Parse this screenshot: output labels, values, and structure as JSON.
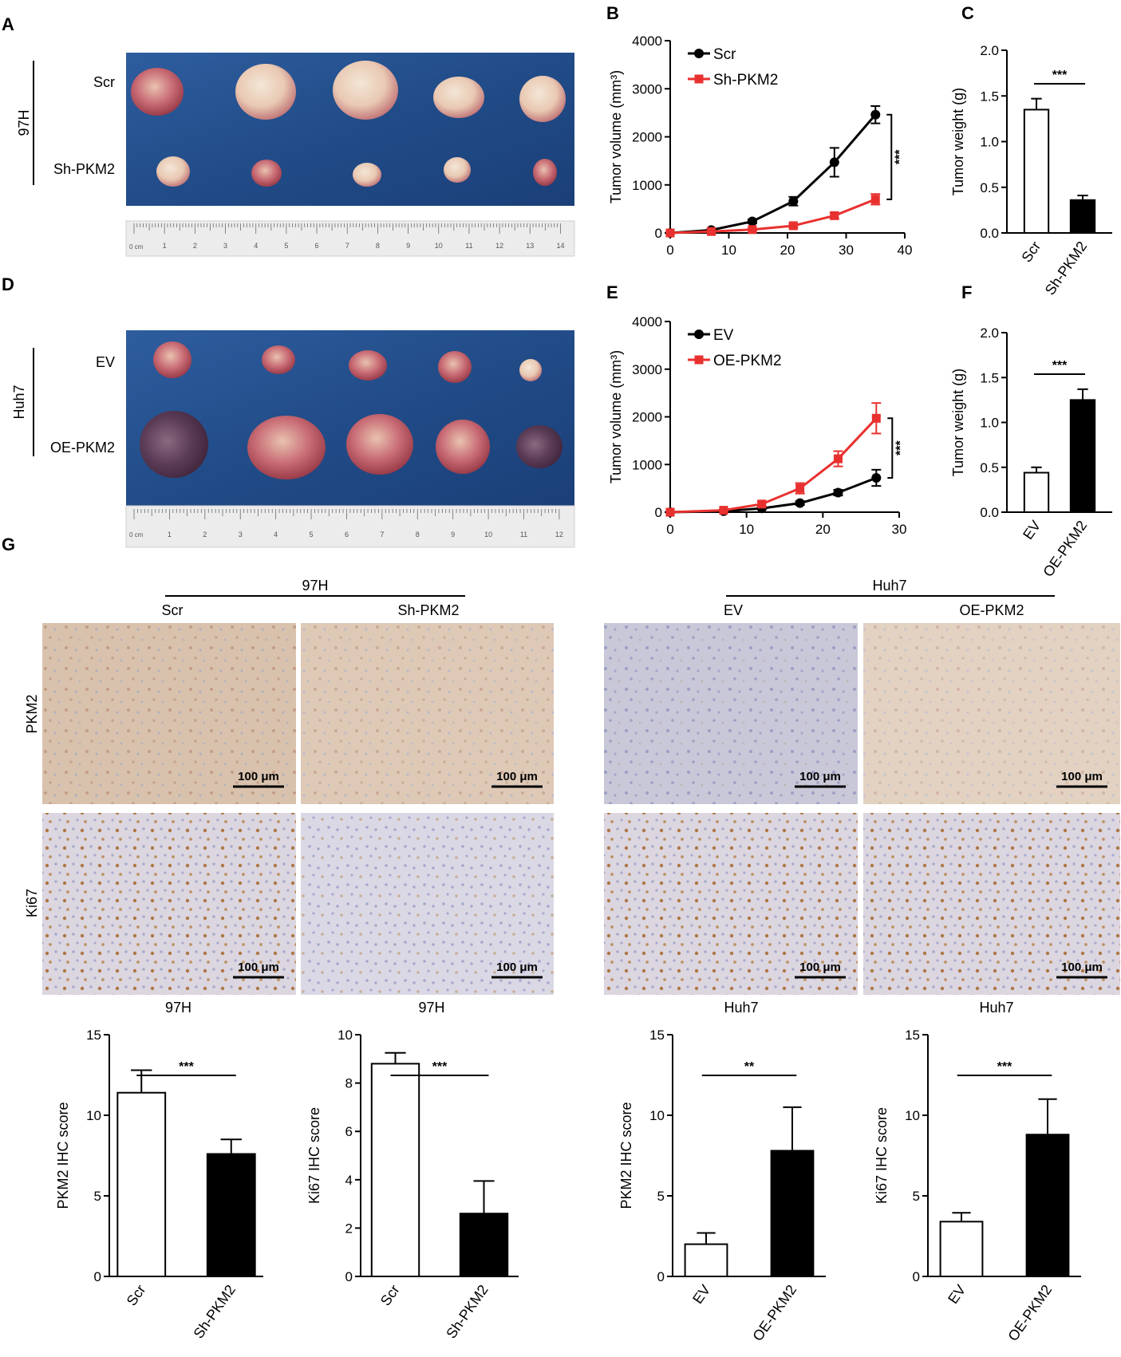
{
  "photo_panels": [
    {
      "letter": "A",
      "cell_line": "97H",
      "rows": [
        "Scr",
        "Sh-PKM2"
      ],
      "ruler_unit": "0 cm",
      "ruler_numbers": [
        "1",
        "2",
        "3",
        "4",
        "5",
        "6",
        "7",
        "8",
        "9",
        "10",
        "11",
        "12",
        "13",
        "14"
      ]
    },
    {
      "letter": "D",
      "cell_line": "Huh7",
      "rows": [
        "EV",
        "OE-PKM2"
      ],
      "ruler_unit": "0 cm",
      "ruler_numbers": [
        "1",
        "2",
        "3",
        "4",
        "5",
        "6",
        "7",
        "8",
        "9",
        "10",
        "11",
        "12"
      ]
    }
  ],
  "ihc": {
    "letter": "G",
    "groups": [
      {
        "title": "97H",
        "columns": [
          "Scr",
          "Sh-PKM2"
        ]
      },
      {
        "title": "Huh7",
        "columns": [
          "EV",
          "OE-PKM2"
        ]
      }
    ],
    "rows": [
      "PKM2",
      "Ki67"
    ],
    "scale_bar": "100 μm"
  },
  "chart_data": [
    {
      "id": "B",
      "letter": "B",
      "type": "line",
      "title": "",
      "xlabel": "",
      "ylabel": "Tumor volume (mm³)",
      "xlim": [
        0,
        40
      ],
      "ylim": [
        0,
        4000
      ],
      "xticks": [
        0,
        10,
        20,
        30,
        40
      ],
      "yticks": [
        0,
        1000,
        2000,
        3000,
        4000
      ],
      "legend_position": "top-left",
      "significance": "***",
      "series": [
        {
          "name": "Scr",
          "color": "#000000",
          "marker": "circle",
          "x": [
            0,
            7,
            14,
            21,
            28,
            35
          ],
          "y": [
            0,
            60,
            240,
            660,
            1470,
            2460
          ],
          "err": [
            0,
            15,
            40,
            90,
            300,
            180
          ]
        },
        {
          "name": "Sh-PKM2",
          "color": "#e8312f",
          "marker": "square",
          "x": [
            0,
            7,
            14,
            21,
            28,
            35
          ],
          "y": [
            0,
            30,
            70,
            150,
            360,
            700
          ],
          "err": [
            0,
            10,
            20,
            40,
            60,
            110
          ]
        }
      ]
    },
    {
      "id": "C",
      "letter": "C",
      "type": "bar",
      "title": "",
      "xlabel": "",
      "ylabel": "Tumor weight (g)",
      "ylim": [
        0,
        2.0
      ],
      "yticks": [
        "0.0",
        "0.5",
        "1.0",
        "1.5",
        "2.0"
      ],
      "significance": "***",
      "categories": [
        "Scr",
        "Sh-PKM2"
      ],
      "values": [
        1.35,
        0.36
      ],
      "errors": [
        0.12,
        0.05
      ],
      "fills": [
        "#ffffff",
        "#000000"
      ]
    },
    {
      "id": "E",
      "letter": "E",
      "type": "line",
      "title": "",
      "xlabel": "",
      "ylabel": "Tumor volume (mm³)",
      "xlim": [
        0,
        30
      ],
      "ylim": [
        0,
        4000
      ],
      "xticks": [
        0,
        10,
        20,
        30
      ],
      "yticks": [
        0,
        1000,
        2000,
        3000,
        4000
      ],
      "legend_position": "top-left",
      "significance": "***",
      "series": [
        {
          "name": "EV",
          "color": "#000000",
          "marker": "circle",
          "x": [
            0,
            7,
            12,
            17,
            22,
            27
          ],
          "y": [
            0,
            20,
            80,
            190,
            410,
            720
          ],
          "err": [
            0,
            10,
            20,
            40,
            60,
            170
          ]
        },
        {
          "name": "OE-PKM2",
          "color": "#e8312f",
          "marker": "square",
          "x": [
            0,
            7,
            12,
            17,
            22,
            27
          ],
          "y": [
            0,
            40,
            170,
            500,
            1120,
            1970
          ],
          "err": [
            0,
            15,
            50,
            110,
            160,
            320
          ]
        }
      ]
    },
    {
      "id": "F",
      "letter": "F",
      "type": "bar",
      "title": "",
      "xlabel": "",
      "ylabel": "Tumor weight (g)",
      "ylim": [
        0,
        2.0
      ],
      "yticks": [
        "0.0",
        "0.5",
        "1.0",
        "1.5",
        "2.0"
      ],
      "significance": "***",
      "categories": [
        "EV",
        "OE-PKM2"
      ],
      "values": [
        0.44,
        1.25
      ],
      "errors": [
        0.06,
        0.12
      ],
      "fills": [
        "#ffffff",
        "#000000"
      ]
    },
    {
      "id": "G1",
      "type": "bar",
      "title": "97H",
      "xlabel": "",
      "ylabel": "PKM2 IHC score",
      "ylim": [
        0,
        15
      ],
      "yticks": [
        "0",
        "5",
        "10",
        "15"
      ],
      "significance": "***",
      "categories": [
        "Scr",
        "Sh-PKM2"
      ],
      "values": [
        11.4,
        7.6
      ],
      "errors": [
        1.4,
        0.9
      ],
      "fills": [
        "#ffffff",
        "#000000"
      ]
    },
    {
      "id": "G2",
      "type": "bar",
      "title": "97H",
      "xlabel": "",
      "ylabel": "Ki67 IHC score",
      "ylim": [
        0,
        10
      ],
      "yticks": [
        "0",
        "2",
        "4",
        "6",
        "8",
        "10"
      ],
      "significance": "***",
      "categories": [
        "Scr",
        "Sh-PKM2"
      ],
      "values": [
        8.8,
        2.6
      ],
      "errors": [
        0.45,
        1.35
      ],
      "fills": [
        "#ffffff",
        "#000000"
      ]
    },
    {
      "id": "G3",
      "type": "bar",
      "title": "Huh7",
      "xlabel": "",
      "ylabel": "PKM2 IHC score",
      "ylim": [
        0,
        15
      ],
      "yticks": [
        "0",
        "5",
        "10",
        "15"
      ],
      "significance": "**",
      "categories": [
        "EV",
        "OE-PKM2"
      ],
      "values": [
        2.0,
        7.8
      ],
      "errors": [
        0.7,
        2.7
      ],
      "fills": [
        "#ffffff",
        "#000000"
      ]
    },
    {
      "id": "G4",
      "type": "bar",
      "title": "Huh7",
      "xlabel": "",
      "ylabel": "Ki67 IHC score",
      "ylim": [
        0,
        15
      ],
      "yticks": [
        "0",
        "5",
        "10",
        "15"
      ],
      "significance": "***",
      "categories": [
        "EV",
        "OE-PKM2"
      ],
      "values": [
        3.4,
        8.8
      ],
      "errors": [
        0.55,
        2.2
      ],
      "fills": [
        "#ffffff",
        "#000000"
      ]
    }
  ]
}
